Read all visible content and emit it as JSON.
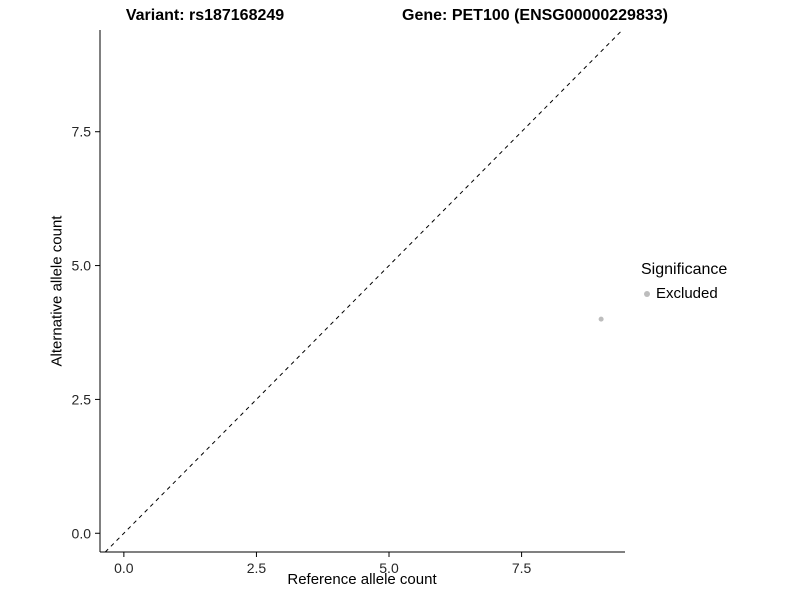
{
  "chart_data": {
    "type": "scatter",
    "title_left": "Variant: rs187168249",
    "title_right": "Gene: PET100 (ENSG00000229833)",
    "xlabel": "Reference allele count",
    "ylabel": "Alternative allele count",
    "xlim": [
      -0.45,
      9.45
    ],
    "ylim": [
      -0.35,
      9.4
    ],
    "x_ticks": [
      {
        "value": 0,
        "label": "0.0"
      },
      {
        "value": 2.5,
        "label": "2.5"
      },
      {
        "value": 5,
        "label": "5.0"
      },
      {
        "value": 7.5,
        "label": "7.5"
      }
    ],
    "y_ticks": [
      {
        "value": 0,
        "label": "0.0"
      },
      {
        "value": 2.5,
        "label": "2.5"
      },
      {
        "value": 5,
        "label": "5.0"
      },
      {
        "value": 7.5,
        "label": "7.5"
      }
    ],
    "grid": false,
    "reference_line": {
      "kind": "identity",
      "slope": 1,
      "intercept": 0,
      "style": "dashed",
      "color": "#000000"
    },
    "series": [
      {
        "name": "Excluded",
        "color": "#bdbdbd",
        "points": [
          {
            "x": 9,
            "y": 4
          }
        ]
      }
    ],
    "legend": {
      "title": "Significance",
      "position": "right",
      "entries": [
        {
          "label": "Excluded",
          "color": "#bdbdbd"
        }
      ]
    },
    "colors": {
      "axis": "#000000",
      "tick_text": "#262626",
      "background": "#ffffff"
    }
  }
}
